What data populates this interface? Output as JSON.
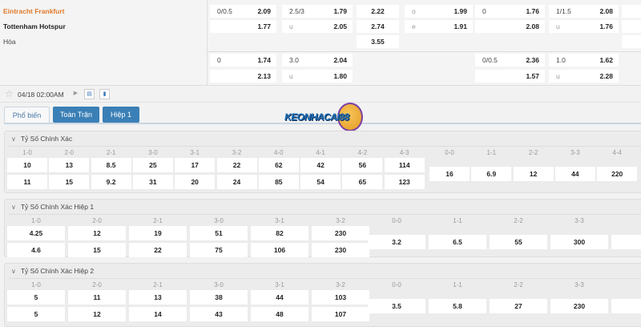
{
  "match": {
    "home": "Eintracht Frankfurt",
    "away": "Tottenham Hotspur",
    "draw": "Hòa",
    "datetime": "04/18 02:00AM",
    "home_color": "#e07a2a"
  },
  "odds": {
    "r1": {
      "a_l": "0/0.5",
      "a_v": "2.09",
      "b_l": "2.5/3",
      "b_v": "1.79",
      "c_v": "2.22",
      "d_l": "o",
      "d_v": "1.99",
      "e_l": "0",
      "e_v": "1.76",
      "f_l": "1/1.5",
      "f_v": "2.08"
    },
    "r2": {
      "a_v": "1.77",
      "b_l": "u",
      "b_v": "2.05",
      "c_v": "2.74",
      "d_l": "e",
      "d_v": "1.91",
      "e_v": "2.08",
      "f_l": "u",
      "f_v": "1.76"
    },
    "r3": {
      "c_v": "3.55"
    },
    "r4": {
      "a_l": "0",
      "a_v": "1.74",
      "b_l": "3.0",
      "b_v": "2.04",
      "e_l": "0/0.5",
      "e_v": "2.36",
      "f_l": "1.0",
      "f_v": "1.62"
    },
    "r5": {
      "a_v": "2.13",
      "b_l": "u",
      "b_v": "1.80",
      "e_v": "1.57",
      "f_l": "u",
      "f_v": "2.28"
    }
  },
  "icons": [
    "star-icon",
    "play-icon",
    "scoreboard-icon",
    "stats-icon"
  ],
  "tabs": [
    {
      "label": "Phổ biến",
      "active": true
    },
    {
      "label": "Toàn Trận"
    },
    {
      "label": "Hiệp 1"
    }
  ],
  "logo": {
    "text": "KEONHACAI88"
  },
  "sections": [
    {
      "title": "Tỷ Số Chính Xác",
      "scores": [
        "1-0",
        "2-0",
        "2-1",
        "3-0",
        "3-1",
        "3-2",
        "4-0",
        "4-1",
        "4-2",
        "4-3"
      ],
      "home": [
        "10",
        "13",
        "8.5",
        "25",
        "17",
        "22",
        "62",
        "42",
        "56",
        "114"
      ],
      "away": [
        "11",
        "15",
        "9.2",
        "31",
        "20",
        "24",
        "85",
        "54",
        "65",
        "123"
      ],
      "draw_scores": [
        "0-0",
        "1-1",
        "2-2",
        "3-3",
        "4-4"
      ],
      "draw": [
        "16",
        "6.9",
        "12",
        "44",
        "220"
      ]
    },
    {
      "title": "Tỷ Số Chính Xác Hiệp 1",
      "scores": [
        "1-0",
        "2-0",
        "2-1",
        "3-0",
        "3-1",
        "3-2"
      ],
      "home": [
        "4.25",
        "12",
        "19",
        "51",
        "82",
        "230"
      ],
      "away": [
        "4.6",
        "15",
        "22",
        "75",
        "106",
        "230"
      ],
      "draw_scores": [
        "0-0",
        "1-1",
        "2-2",
        "3-3"
      ],
      "draw": [
        "3.2",
        "6.5",
        "55",
        "300"
      ]
    },
    {
      "title": "Tỷ Số Chính Xác Hiệp 2",
      "scores": [
        "1-0",
        "2-0",
        "2-1",
        "3-0",
        "3-1",
        "3-2"
      ],
      "home": [
        "5",
        "11",
        "13",
        "38",
        "44",
        "103"
      ],
      "away": [
        "5",
        "12",
        "14",
        "43",
        "48",
        "107"
      ],
      "draw_scores": [
        "0-0",
        "1-1",
        "2-2",
        "3-3"
      ],
      "draw": [
        "3.5",
        "5.8",
        "27",
        "230"
      ]
    }
  ]
}
